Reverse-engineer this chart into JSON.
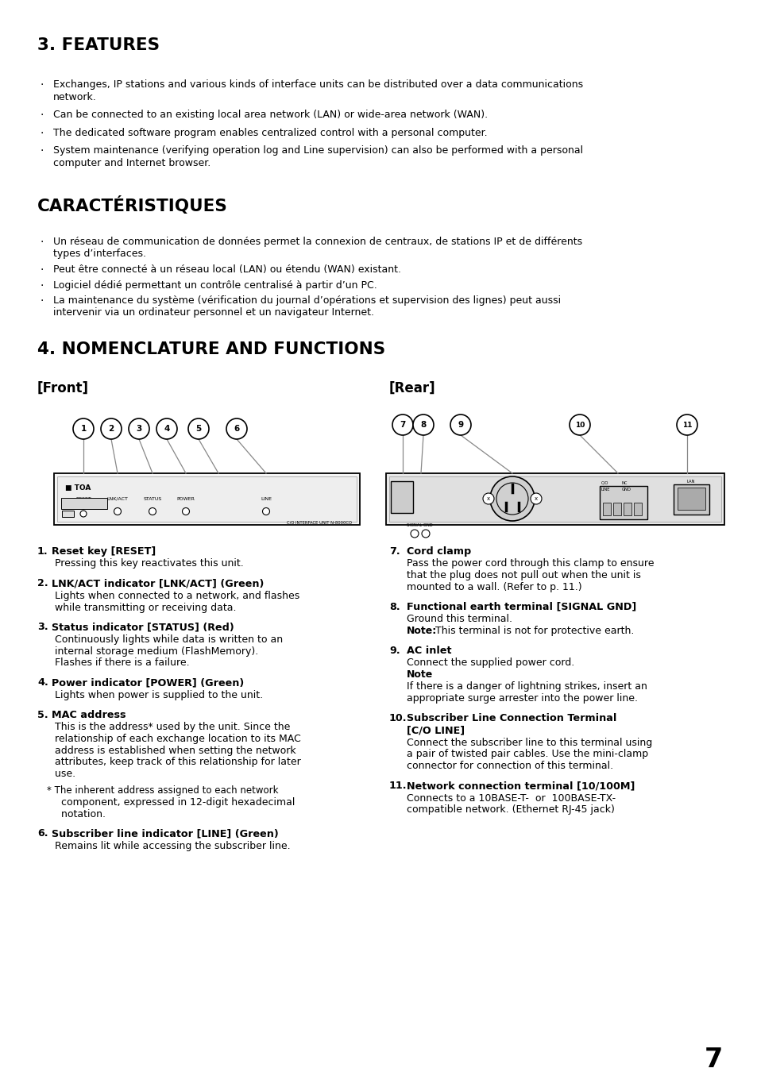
{
  "bg_color": "#ffffff",
  "text_color": "#000000",
  "page_number": "7",
  "section3_title": "3. FEATURES",
  "features_bullets": [
    [
      "Exchanges, IP stations and various kinds of interface units can be distributed over a data communications",
      "network."
    ],
    [
      "Can be connected to an existing local area network (LAN) or wide-area network (WAN)."
    ],
    [
      "The dedicated software program enables centralized control with a personal computer."
    ],
    [
      "System maintenance (verifying operation log and Line supervision) can also be performed with a personal",
      "computer and Internet browser."
    ]
  ],
  "section3_french_title": "CARACTÉRISTIQUES",
  "features_french_bullets": [
    [
      "Un réseau de communication de données permet la connexion de centraux, de stations IP et de différents",
      "types d’interfaces."
    ],
    [
      "Peut être connecté à un réseau local (LAN) ou étendu (WAN) existant."
    ],
    [
      "Logiciel dédié permettant un contrôle centralisé à partir d’un PC."
    ],
    [
      "La maintenance du système (vérification du journal d’opérations et supervision des lignes) peut aussi",
      "intervenir via un ordinateur personnel et un navigateur Internet."
    ]
  ],
  "section4_title": "4. NOMENCLATURE AND FUNCTIONS",
  "front_label": "[Front]",
  "rear_label": "[Rear]",
  "items_left": [
    {
      "num": "1",
      "bold": "Reset key [RESET]",
      "body": [
        "Pressing this key reactivates this unit."
      ]
    },
    {
      "num": "2",
      "bold": "LNK/ACT indicator [LNK/ACT] (Green)",
      "body": [
        "Lights when connected to a network, and flashes",
        "while transmitting or receiving data."
      ]
    },
    {
      "num": "3",
      "bold": "Status indicator [STATUS] (Red)",
      "body": [
        "Continuously lights while data is written to an",
        "internal storage medium (FlashMemory).",
        "Flashes if there is a failure."
      ]
    },
    {
      "num": "4",
      "bold": "Power indicator [POWER] (Green)",
      "body": [
        "Lights when power is supplied to the unit."
      ]
    },
    {
      "num": "5",
      "bold": "MAC address",
      "body": [
        "This is the address* used by the unit. Since the",
        "relationship of each exchange location to its MAC",
        "address is established when setting the network",
        "attributes, keep track of this relationship for later",
        "use.",
        "",
        "* The inherent address assigned to each network",
        "  component, expressed in 12-digit hexadecimal",
        "  notation."
      ]
    },
    {
      "num": "6",
      "bold": "Subscriber line indicator [LINE] (Green)",
      "body": [
        "Remains lit while accessing the subscriber line."
      ]
    }
  ],
  "items_right": [
    {
      "num": "7",
      "bold": "Cord clamp",
      "body": [
        "Pass the power cord through this clamp to ensure",
        "that the plug does not pull out when the unit is",
        "mounted to a wall. (Refer to p. 11.)"
      ]
    },
    {
      "num": "8",
      "bold": "Functional earth terminal [SIGNAL GND]",
      "body": [
        "Ground this terminal.",
        "||Note:|| This terminal is not for protective earth."
      ]
    },
    {
      "num": "9",
      "bold": "AC inlet",
      "body": [
        "Connect the supplied power cord.",
        "||Note||",
        "If there is a danger of lightning strikes, insert an",
        "appropriate surge arrester into the power line."
      ]
    },
    {
      "num": "10",
      "bold1": "Subscriber Line Connection Terminal",
      "bold2": "[C/O LINE]",
      "body": [
        "Connect the subscriber line to this terminal using",
        "a pair of twisted pair cables. Use the mini-clamp",
        "connector for connection of this terminal."
      ]
    },
    {
      "num": "11",
      "bold": "Network connection terminal [10/100M]",
      "body": [
        "Connects to a 10BASE-T-  or  100BASE-TX-",
        "compatible network. (Ethernet RJ-45 jack)"
      ]
    }
  ]
}
